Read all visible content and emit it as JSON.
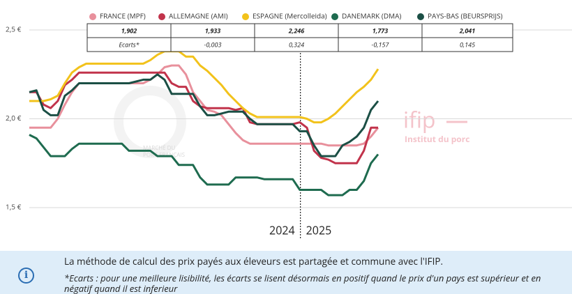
{
  "chart_data": {
    "type": "line",
    "categories": [
      null,
      null,
      null,
      null,
      null,
      null,
      null,
      null,
      null,
      null,
      null,
      null,
      null,
      null,
      null,
      null,
      null,
      null,
      null,
      null,
      null,
      null,
      null,
      null,
      null,
      null,
      null,
      null,
      null,
      null,
      null,
      null,
      null,
      null,
      null,
      null,
      null,
      null,
      null,
      null,
      null,
      null,
      null,
      null,
      null,
      null,
      null,
      null,
      null,
      null
    ],
    "series": [
      {
        "name": "FRANCE (MPF)",
        "color": "#e8909c",
        "values": [
          1.95,
          1.95,
          1.95,
          1.95,
          2.0,
          2.08,
          2.15,
          2.2,
          2.2,
          2.2,
          2.2,
          2.2,
          2.2,
          2.2,
          2.2,
          2.2,
          2.2,
          2.22,
          2.25,
          2.29,
          2.3,
          2.3,
          2.25,
          2.15,
          2.1,
          2.05,
          2.04,
          2.02,
          1.97,
          1.92,
          1.88,
          1.86,
          1.86,
          1.86,
          1.86,
          1.86,
          1.86,
          1.86,
          1.86,
          1.86,
          1.86,
          1.86,
          1.85,
          1.85,
          1.85,
          1.85,
          1.85,
          1.86,
          1.9,
          1.95
        ]
      },
      {
        "name": "ALLEMAGNE (AMI)",
        "color": "#c1334b",
        "values": [
          2.15,
          2.15,
          2.08,
          2.06,
          2.1,
          2.19,
          2.22,
          2.26,
          2.26,
          2.26,
          2.26,
          2.26,
          2.26,
          2.26,
          2.26,
          2.26,
          2.26,
          2.26,
          2.26,
          2.26,
          2.2,
          2.18,
          2.18,
          2.1,
          2.07,
          2.06,
          2.06,
          2.06,
          2.06,
          2.05,
          2.06,
          1.98,
          1.97,
          1.97,
          1.97,
          1.97,
          1.97,
          1.97,
          1.98,
          1.95,
          1.82,
          1.78,
          1.77,
          1.75,
          1.75,
          1.75,
          1.75,
          1.82,
          1.95,
          1.95
        ]
      },
      {
        "name": "ESPAGNE (Mercolleida)",
        "color": "#f2c21b",
        "values": [
          2.1,
          2.1,
          2.1,
          2.11,
          2.13,
          2.2,
          2.26,
          2.29,
          2.31,
          2.31,
          2.31,
          2.31,
          2.31,
          2.31,
          2.31,
          2.31,
          2.31,
          2.33,
          2.36,
          2.38,
          2.38,
          2.38,
          2.35,
          2.35,
          2.3,
          2.27,
          2.23,
          2.19,
          2.14,
          2.1,
          2.06,
          2.03,
          2.01,
          2.01,
          2.01,
          2.01,
          2.01,
          2.01,
          2.01,
          2.0,
          1.98,
          1.98,
          2.0,
          2.03,
          2.07,
          2.11,
          2.15,
          2.18,
          2.22,
          2.28
        ]
      },
      {
        "name": "DANEMARK (DMA)",
        "color": "#1e6b4f",
        "values": [
          1.91,
          1.89,
          1.84,
          1.79,
          1.79,
          1.79,
          1.83,
          1.86,
          1.86,
          1.86,
          1.86,
          1.86,
          1.86,
          1.86,
          1.82,
          1.82,
          1.82,
          1.82,
          1.79,
          1.79,
          1.79,
          1.74,
          1.74,
          1.74,
          1.67,
          1.63,
          1.63,
          1.63,
          1.63,
          1.67,
          1.67,
          1.67,
          1.67,
          1.66,
          1.66,
          1.66,
          1.66,
          1.66,
          1.6,
          1.6,
          1.6,
          1.6,
          1.57,
          1.57,
          1.57,
          1.6,
          1.6,
          1.65,
          1.75,
          1.8
        ]
      },
      {
        "name": "PAYS-BAS (BEURSPRIJS)",
        "color": "#1b4f45",
        "values": [
          2.15,
          2.16,
          2.05,
          2.02,
          2.02,
          2.13,
          2.16,
          2.2,
          2.2,
          2.2,
          2.2,
          2.2,
          2.2,
          2.2,
          2.2,
          2.21,
          2.22,
          2.22,
          2.25,
          2.22,
          2.14,
          2.14,
          2.14,
          2.14,
          2.07,
          2.02,
          2.02,
          2.03,
          2.04,
          2.04,
          2.04,
          2.0,
          1.97,
          1.97,
          1.97,
          1.97,
          1.97,
          1.97,
          1.93,
          1.93,
          1.85,
          1.79,
          1.79,
          1.79,
          1.85,
          1.87,
          1.9,
          1.95,
          2.05,
          2.1
        ]
      }
    ],
    "ylim": [
      1.5,
      2.5
    ],
    "yticks": [
      {
        "value": 2.5,
        "label": "2,5 €"
      },
      {
        "value": 2.0,
        "label": "2,0 €"
      },
      {
        "value": 1.5,
        "label": "1,5 €"
      }
    ],
    "grid": true,
    "period_labels": [
      "2024",
      "2025"
    ],
    "table": {
      "rows": [
        [
          "1,902",
          "1,933",
          "2,246",
          "1,773",
          "2,041"
        ],
        [
          "Ecarts*",
          "-0,003",
          "0,324",
          "-0,157",
          "0,145"
        ]
      ]
    },
    "watermarks": {
      "logo1": [
        "MARCHÉ DU",
        "PORC FRANÇAIS"
      ],
      "logo2": [
        "ifip",
        "Institut du porc"
      ]
    }
  },
  "note": {
    "text": "La méthode de calcul des prix payés aux éleveurs est partagée et commune avec l'IFIP.",
    "footnote": "*Ecarts : pour une meilleure lisibilité, les écarts se lisent désormais en positif quand le prix d'un pays est supérieur et en négatif quand il est inferieur"
  }
}
